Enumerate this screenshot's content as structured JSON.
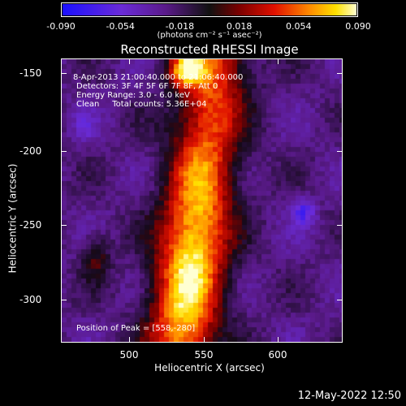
{
  "colorbar": {
    "tick_labels": [
      "-0.090",
      "-0.054",
      "-0.018",
      "0.018",
      "0.054",
      "0.090"
    ],
    "units": "(photons cm⁻² s⁻¹ asec⁻²)",
    "range": [
      -0.09,
      0.09
    ]
  },
  "plot": {
    "title": "Reconstructed RHESSI Image",
    "info_lines": [
      "8-Apr-2013 21:00:40.000 to 21:06:40.000",
      "Detectors: 3F 4F 5F 6F 7F 8F, Att 0",
      "Energy Range: 3.0 - 6.0 keV",
      "Clean     Total counts: 5.36E+04"
    ],
    "peak_label": "Position of Peak = [558,-280]",
    "xlabel": "Heliocentric X (arcsec)",
    "ylabel": "Heliocentric Y (arcsec)",
    "x_ticks": [
      "500",
      "550",
      "600"
    ],
    "y_ticks": [
      "-150",
      "-200",
      "-250",
      "-300"
    ],
    "x_tick_values": [
      500,
      550,
      600
    ],
    "y_tick_values": [
      -150,
      -200,
      -250,
      -300
    ],
    "xlim": [
      457,
      642
    ],
    "ylim": [
      -328,
      -139
    ]
  },
  "footer": {
    "date": "12-May-2022 12:50"
  },
  "colors": {
    "background": "#000000",
    "foreground": "#ffffff"
  }
}
